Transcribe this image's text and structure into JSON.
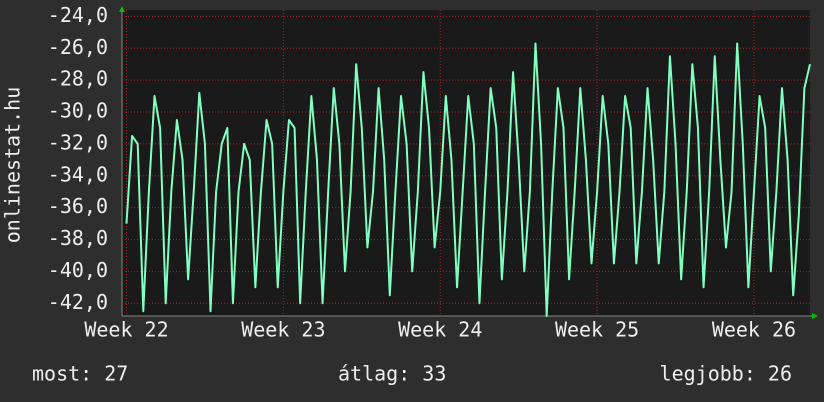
{
  "chart_data": {
    "type": "line",
    "y_label": "onlinestat.hu",
    "x": [
      0,
      0.25,
      0.5,
      0.75,
      1,
      1.25,
      1.5,
      1.75,
      2,
      2.25,
      2.5,
      2.75,
      3,
      3.25,
      3.5,
      3.75,
      4,
      4.25,
      4.5,
      4.75,
      5,
      5.25,
      5.5,
      5.75,
      6,
      6.25,
      6.5,
      6.75,
      7,
      7.25,
      7.5,
      7.75,
      8,
      8.25,
      8.5,
      8.75,
      9,
      9.25,
      9.5,
      9.75,
      10,
      10.25,
      10.5,
      10.75,
      11,
      11.25,
      11.5,
      11.75,
      12,
      12.25,
      12.5,
      12.75,
      13,
      13.25,
      13.5,
      13.75,
      14,
      14.25,
      14.5,
      14.75,
      15,
      15.25,
      15.5,
      15.75,
      16,
      16.25,
      16.5,
      16.75,
      17,
      17.25,
      17.5,
      17.75,
      18,
      18.25,
      18.5,
      18.75,
      19,
      19.25,
      19.5,
      19.75,
      20,
      20.25,
      20.5,
      20.75,
      21,
      21.25,
      21.5,
      21.75,
      22,
      22.25,
      22.5,
      22.75,
      23,
      23.25,
      23.5,
      23.75,
      24,
      24.25,
      24.5,
      24.75,
      25,
      25.25,
      25.5,
      25.75,
      26,
      26.25,
      26.5,
      26.75,
      27,
      27.25,
      27.5,
      27.75,
      28,
      28.25,
      28.5,
      28.75,
      29,
      29.25,
      29.5,
      29.75,
      30,
      30.25,
      30.5
    ],
    "series": [
      {
        "color": "#80ffc0",
        "values": [
          -37,
          -31.5,
          -32,
          -42.5,
          -35,
          -29,
          -31,
          -42,
          -35,
          -30.5,
          -33,
          -40.5,
          -35,
          -28.8,
          -32,
          -42.5,
          -35,
          -32,
          -31,
          -42,
          -35,
          -32,
          -33,
          -41,
          -35,
          -30.5,
          -32,
          -41,
          -35,
          -30.5,
          -31,
          -42,
          -35,
          -29,
          -33,
          -42,
          -35,
          -28.5,
          -32,
          -40,
          -35,
          -27,
          -31,
          -38.5,
          -35,
          -28.5,
          -33,
          -41.5,
          -35,
          -29,
          -32,
          -40,
          -35,
          -27.5,
          -31,
          -38.5,
          -35,
          -29,
          -33,
          -41,
          -35,
          -29,
          -32,
          -42,
          -35,
          -28.5,
          -31,
          -40.5,
          -35,
          -27.5,
          -33,
          -40,
          -35,
          -25.7,
          -32,
          -42.8,
          -35,
          -28.5,
          -31,
          -40.5,
          -35,
          -28.5,
          -33,
          -39.5,
          -35,
          -29,
          -32,
          -39.5,
          -35,
          -29,
          -31,
          -39.5,
          -35,
          -28.5,
          -33,
          -39.5,
          -35,
          -26.5,
          -32,
          -40.5,
          -35,
          -27,
          -31,
          -41,
          -35,
          -26.5,
          -33,
          -38.5,
          -35,
          -25.7,
          -32,
          -41,
          -35,
          -29,
          -31,
          -40,
          -35,
          -28.5,
          -33,
          -41.5,
          -36.5,
          -28.5,
          -27
        ]
      }
    ],
    "xlim": [
      -0.2,
      30.5
    ],
    "xticks": [
      {
        "value": 0,
        "label": "Week 22"
      },
      {
        "value": 7,
        "label": "Week 23"
      },
      {
        "value": 14,
        "label": "Week 24"
      },
      {
        "value": 21,
        "label": "Week 25"
      },
      {
        "value": 28,
        "label": "Week 26"
      }
    ],
    "ylim": [
      -42.8,
      -23.6
    ],
    "yticks": [
      {
        "value": -24,
        "label": "-24,0"
      },
      {
        "value": -26,
        "label": "-26,0"
      },
      {
        "value": -28,
        "label": "-28,0"
      },
      {
        "value": -30,
        "label": "-30,0"
      },
      {
        "value": -32,
        "label": "-32,0"
      },
      {
        "value": -34,
        "label": "-34,0"
      },
      {
        "value": -36,
        "label": "-36,0"
      },
      {
        "value": -38,
        "label": "-38,0"
      },
      {
        "value": -40,
        "label": "-40,0"
      },
      {
        "value": -42,
        "label": "-42,0"
      }
    ],
    "grid": true
  },
  "footer": {
    "current": "most: 27",
    "average": "átlag: 33",
    "best": "legjobb: 26"
  }
}
